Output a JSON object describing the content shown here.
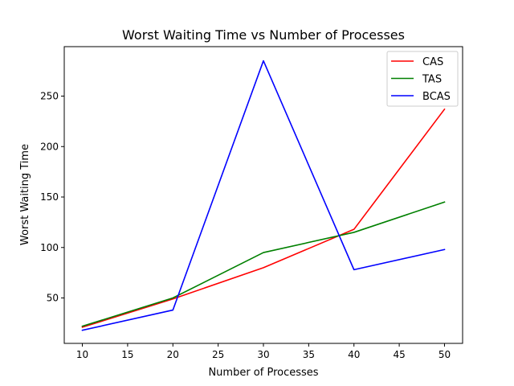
{
  "chart_data": {
    "type": "line",
    "title": "Worst Waiting Time vs Number of Processes",
    "xlabel": "Number of Processes",
    "ylabel": "Worst Waiting Time",
    "x": [
      10,
      20,
      30,
      40,
      50
    ],
    "xlim": [
      8,
      52
    ],
    "ylim": [
      5,
      299
    ],
    "xticks": [
      10,
      15,
      20,
      25,
      30,
      35,
      40,
      45,
      50
    ],
    "yticks": [
      50,
      100,
      150,
      200,
      250
    ],
    "grid": false,
    "legend_position": "top-right",
    "series": [
      {
        "name": "CAS",
        "color": "#ff0000",
        "values": [
          21,
          49,
          80,
          118,
          237
        ]
      },
      {
        "name": "TAS",
        "color": "#008000",
        "values": [
          22,
          50,
          95,
          115,
          145
        ]
      },
      {
        "name": "BCAS",
        "color": "#0000ff",
        "values": [
          18,
          38,
          285,
          78,
          98
        ]
      }
    ]
  }
}
